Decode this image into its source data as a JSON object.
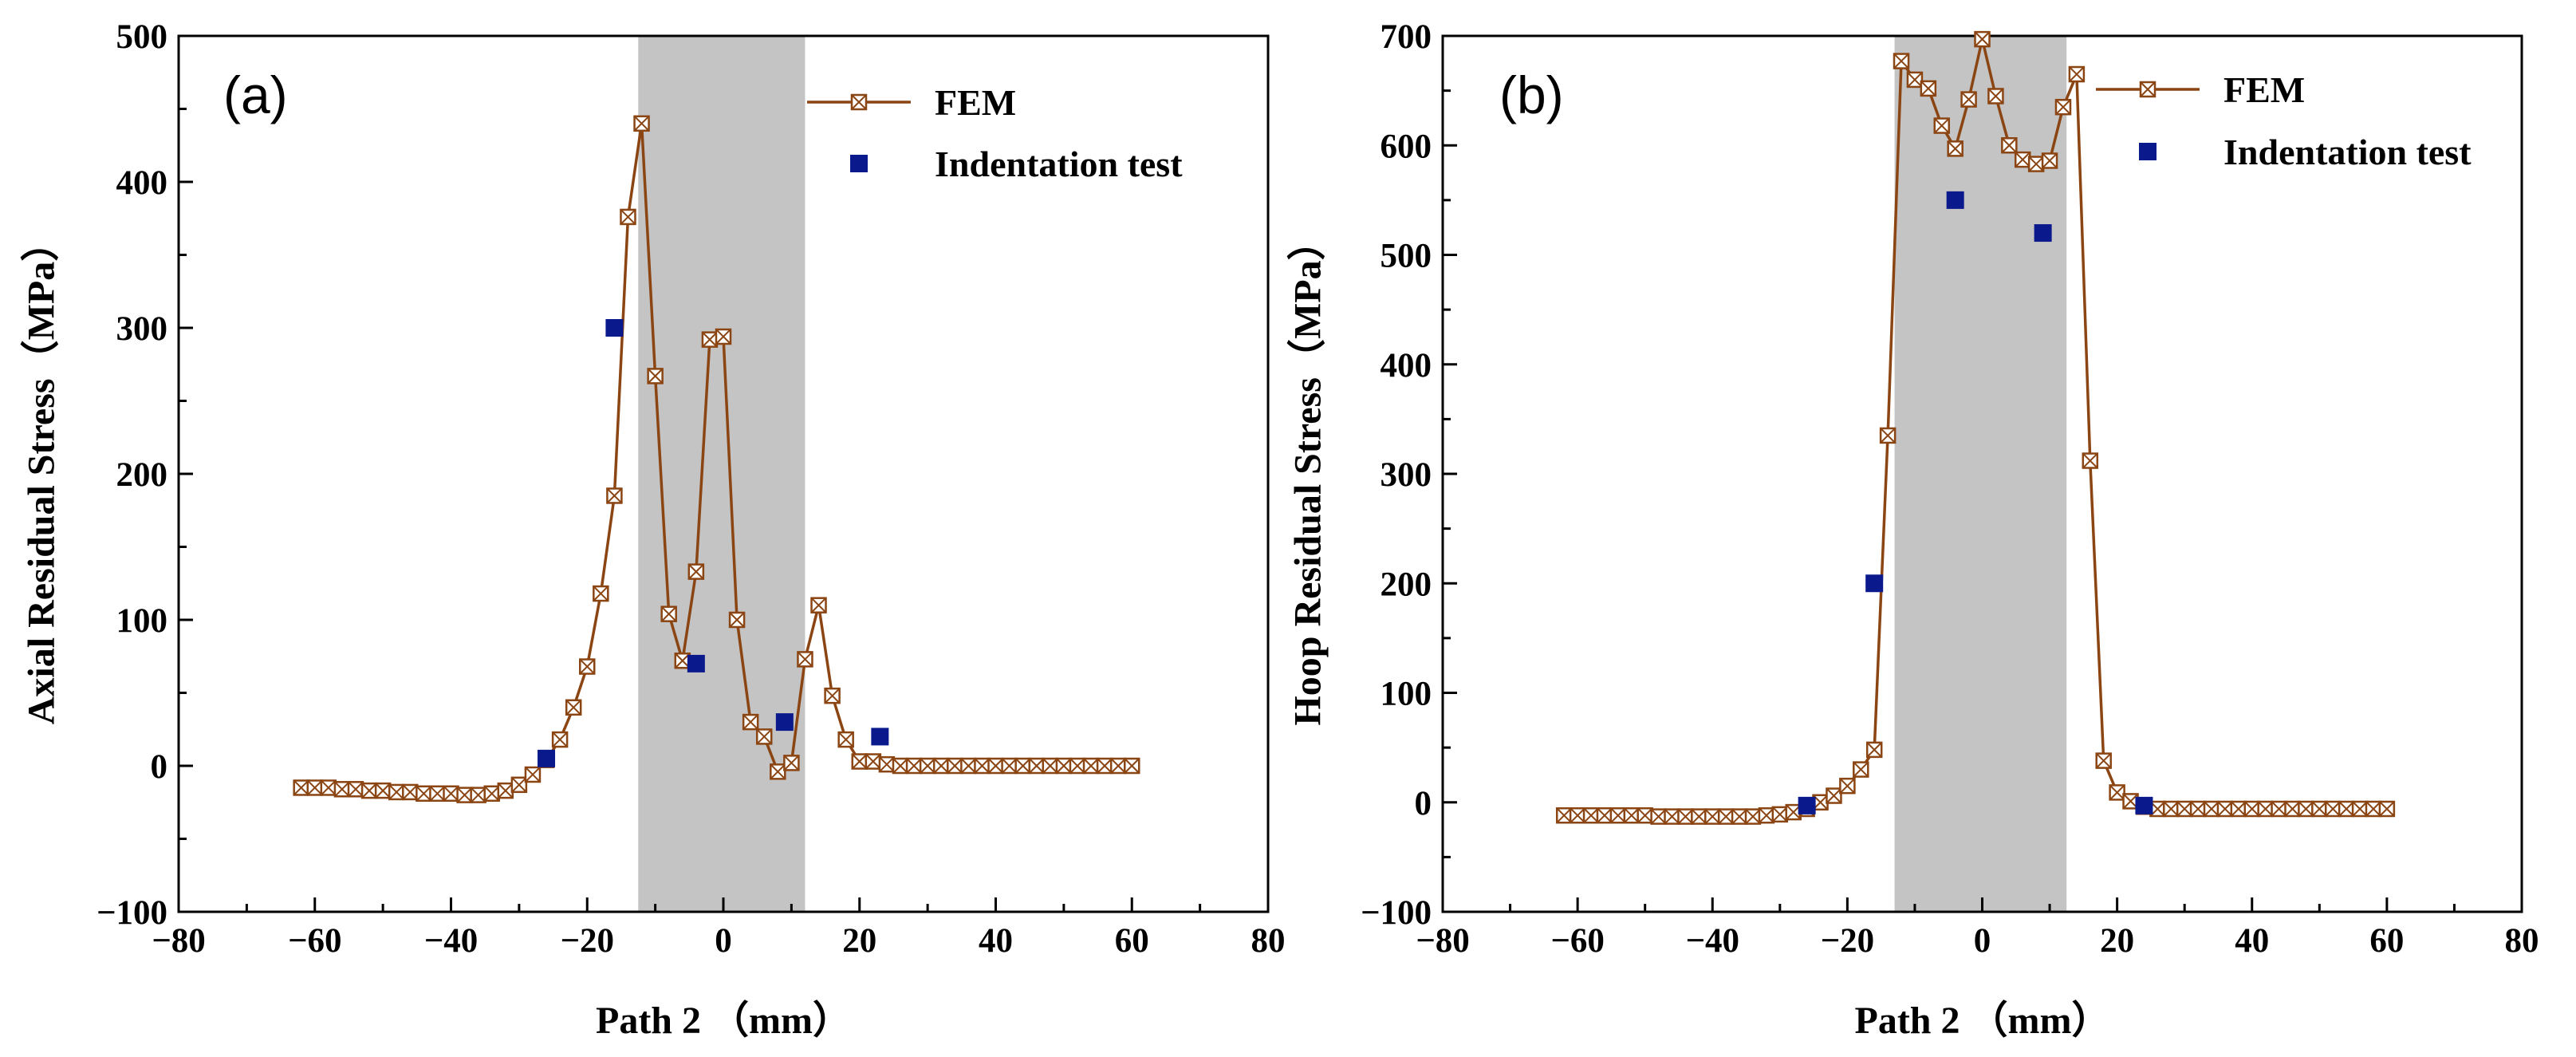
{
  "colors": {
    "fem_line": "#8B4513",
    "fem_marker": "#8B4513",
    "test_marker": "#0A1A8C",
    "shade": "#C4C4C4",
    "axis": "#000000"
  },
  "chart_data": [
    {
      "type": "line",
      "panel_label": "(a)",
      "xlabel": "Path 2 （mm）",
      "ylabel": "Axial Residual Stress（MPa）",
      "xlim": [
        -80,
        80
      ],
      "ylim": [
        -100,
        500
      ],
      "xticks": [
        -80,
        -60,
        -40,
        -20,
        0,
        20,
        40,
        60,
        80
      ],
      "yticks": [
        -100,
        0,
        100,
        200,
        300,
        400,
        500
      ],
      "xtick_labels": [
        "−80",
        "−60",
        "−40",
        "−20",
        "0",
        "20",
        "40",
        "60",
        "80"
      ],
      "ytick_labels": [
        "−100",
        "0",
        "100",
        "200",
        "300",
        "400",
        "500"
      ],
      "shaded_region": [
        -12.5,
        12
      ],
      "legend": [
        "FEM",
        "Indentation test"
      ],
      "series": [
        {
          "name": "FEM",
          "x": [
            -62,
            -60,
            -58,
            -56,
            -54,
            -52,
            -50,
            -48,
            -46,
            -44,
            -42,
            -40,
            -38,
            -36,
            -34,
            -32,
            -30,
            -28,
            -26,
            -24,
            -22,
            -20,
            -18,
            -16,
            -14,
            -12,
            -10,
            -8,
            -6,
            -4,
            -2,
            0,
            2,
            4,
            6,
            8,
            10,
            12,
            14,
            16,
            18,
            20,
            22,
            24,
            26,
            28,
            30,
            32,
            34,
            36,
            38,
            40,
            42,
            44,
            46,
            48,
            50,
            52,
            54,
            56,
            58,
            60
          ],
          "y": [
            -15,
            -15,
            -15,
            -16,
            -16,
            -17,
            -17,
            -18,
            -18,
            -19,
            -19,
            -19,
            -20,
            -20,
            -19,
            -17,
            -13,
            -6,
            4,
            18,
            40,
            68,
            118,
            185,
            376,
            440,
            267,
            104,
            72,
            133,
            292,
            294,
            100,
            30,
            20,
            -4,
            2,
            73,
            110,
            48,
            18,
            3,
            3,
            1,
            0,
            0,
            0,
            0,
            0,
            0,
            0,
            0,
            0,
            0,
            0,
            0,
            0,
            0,
            0,
            0,
            0,
            0
          ]
        },
        {
          "name": "Indentation test",
          "x": [
            -26,
            -16,
            -4,
            9,
            23
          ],
          "y": [
            5,
            300,
            70,
            30,
            20
          ]
        }
      ]
    },
    {
      "type": "line",
      "panel_label": "(b)",
      "xlabel": "Path 2 （mm）",
      "ylabel": "Hoop Residual Stress（MPa）",
      "xlim": [
        -80,
        80
      ],
      "ylim": [
        -100,
        700
      ],
      "xticks": [
        -80,
        -60,
        -40,
        -20,
        0,
        20,
        40,
        60,
        80
      ],
      "yticks": [
        -100,
        0,
        100,
        200,
        300,
        400,
        500,
        600,
        700
      ],
      "xtick_labels": [
        "−80",
        "−60",
        "−40",
        "−20",
        "0",
        "20",
        "40",
        "60",
        "80"
      ],
      "ytick_labels": [
        "−100",
        "0",
        "100",
        "200",
        "300",
        "400",
        "500",
        "600",
        "700"
      ],
      "shaded_region": [
        -13,
        12.5
      ],
      "legend": [
        "FEM",
        "Indentation test"
      ],
      "series": [
        {
          "name": "FEM",
          "x": [
            -62,
            -60,
            -58,
            -56,
            -54,
            -52,
            -50,
            -48,
            -46,
            -44,
            -42,
            -40,
            -38,
            -36,
            -34,
            -32,
            -30,
            -28,
            -26,
            -24,
            -22,
            -20,
            -18,
            -16,
            -14,
            -12,
            -10,
            -8,
            -6,
            -4,
            -2,
            0,
            2,
            4,
            6,
            8,
            10,
            12,
            14,
            16,
            18,
            20,
            22,
            24,
            26,
            28,
            30,
            32,
            34,
            36,
            38,
            40,
            42,
            44,
            46,
            48,
            50,
            52,
            54,
            56,
            58,
            60
          ],
          "y": [
            -12,
            -12,
            -12,
            -12,
            -12,
            -12,
            -12,
            -13,
            -13,
            -13,
            -13,
            -13,
            -13,
            -13,
            -13,
            -12,
            -11,
            -9,
            -6,
            0,
            6,
            15,
            30,
            48,
            335,
            677,
            660,
            652,
            618,
            597,
            642,
            697,
            645,
            600,
            587,
            583,
            586,
            635,
            665,
            312,
            38,
            9,
            1,
            -4,
            -6,
            -6,
            -6,
            -6,
            -6,
            -6,
            -6,
            -6,
            -6,
            -6,
            -6,
            -6,
            -6,
            -6,
            -6,
            -6,
            -6,
            -6
          ]
        },
        {
          "name": "Indentation test",
          "x": [
            -26,
            -16,
            -4,
            9,
            24
          ],
          "y": [
            -3,
            200,
            550,
            520,
            -3
          ]
        }
      ]
    }
  ]
}
